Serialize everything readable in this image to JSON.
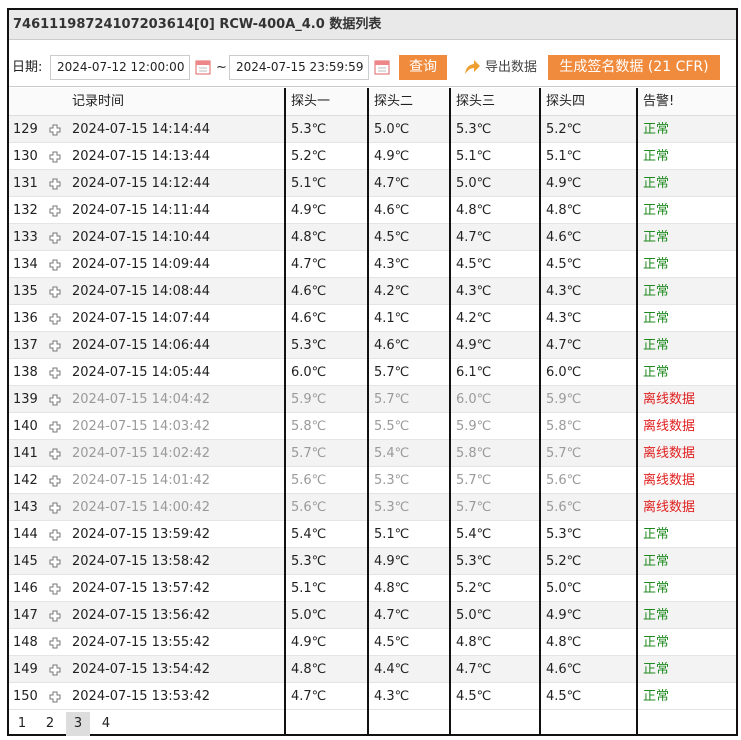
{
  "title": "74611198724107203614[0] RCW-400A_4.0 数据列表",
  "toolbar": {
    "date_label": "日期:",
    "start": "2024-07-12 12:00:00",
    "separator": "~",
    "end": "2024-07-15 23:59:59",
    "query": "查询",
    "export": "导出数据",
    "generate": "生成签名数据 (21 CFR)"
  },
  "table": {
    "columns": [
      "记录时间",
      "探头一",
      "探头二",
      "探头三",
      "探头四",
      "告警!"
    ],
    "rows": [
      [
        129,
        "2024-07-15 14:14:44",
        "5.3℃",
        "5.0℃",
        "5.3℃",
        "5.2℃",
        "正常"
      ],
      [
        130,
        "2024-07-15 14:13:44",
        "5.2℃",
        "4.9℃",
        "5.1℃",
        "5.1℃",
        "正常"
      ],
      [
        131,
        "2024-07-15 14:12:44",
        "5.1℃",
        "4.7℃",
        "5.0℃",
        "4.9℃",
        "正常"
      ],
      [
        132,
        "2024-07-15 14:11:44",
        "4.9℃",
        "4.6℃",
        "4.8℃",
        "4.8℃",
        "正常"
      ],
      [
        133,
        "2024-07-15 14:10:44",
        "4.8℃",
        "4.5℃",
        "4.7℃",
        "4.6℃",
        "正常"
      ],
      [
        134,
        "2024-07-15 14:09:44",
        "4.7℃",
        "4.3℃",
        "4.5℃",
        "4.5℃",
        "正常"
      ],
      [
        135,
        "2024-07-15 14:08:44",
        "4.6℃",
        "4.2℃",
        "4.3℃",
        "4.3℃",
        "正常"
      ],
      [
        136,
        "2024-07-15 14:07:44",
        "4.6℃",
        "4.1℃",
        "4.2℃",
        "4.3℃",
        "正常"
      ],
      [
        137,
        "2024-07-15 14:06:44",
        "5.3℃",
        "4.6℃",
        "4.9℃",
        "4.7℃",
        "正常"
      ],
      [
        138,
        "2024-07-15 14:05:44",
        "6.0℃",
        "5.7℃",
        "6.1℃",
        "6.0℃",
        "正常"
      ],
      [
        139,
        "2024-07-15 14:04:42",
        "5.9℃",
        "5.7℃",
        "6.0℃",
        "5.9℃",
        "离线数据"
      ],
      [
        140,
        "2024-07-15 14:03:42",
        "5.8℃",
        "5.5℃",
        "5.9℃",
        "5.8℃",
        "离线数据"
      ],
      [
        141,
        "2024-07-15 14:02:42",
        "5.7℃",
        "5.4℃",
        "5.8℃",
        "5.7℃",
        "离线数据"
      ],
      [
        142,
        "2024-07-15 14:01:42",
        "5.6℃",
        "5.3℃",
        "5.7℃",
        "5.6℃",
        "离线数据"
      ],
      [
        143,
        "2024-07-15 14:00:42",
        "5.6℃",
        "5.3℃",
        "5.7℃",
        "5.6℃",
        "离线数据"
      ],
      [
        144,
        "2024-07-15 13:59:42",
        "5.4℃",
        "5.1℃",
        "5.4℃",
        "5.3℃",
        "正常"
      ],
      [
        145,
        "2024-07-15 13:58:42",
        "5.3℃",
        "4.9℃",
        "5.3℃",
        "5.2℃",
        "正常"
      ],
      [
        146,
        "2024-07-15 13:57:42",
        "5.1℃",
        "4.8℃",
        "5.2℃",
        "5.0℃",
        "正常"
      ],
      [
        147,
        "2024-07-15 13:56:42",
        "5.0℃",
        "4.7℃",
        "5.0℃",
        "4.9℃",
        "正常"
      ],
      [
        148,
        "2024-07-15 13:55:42",
        "4.9℃",
        "4.5℃",
        "4.8℃",
        "4.8℃",
        "正常"
      ],
      [
        149,
        "2024-07-15 13:54:42",
        "4.8℃",
        "4.4℃",
        "4.7℃",
        "4.6℃",
        "正常"
      ],
      [
        150,
        "2024-07-15 13:53:42",
        "4.7℃",
        "4.3℃",
        "4.5℃",
        "4.5℃",
        "正常"
      ]
    ]
  },
  "pagination": {
    "pages": [
      1,
      2,
      3,
      4
    ],
    "current": 3
  }
}
